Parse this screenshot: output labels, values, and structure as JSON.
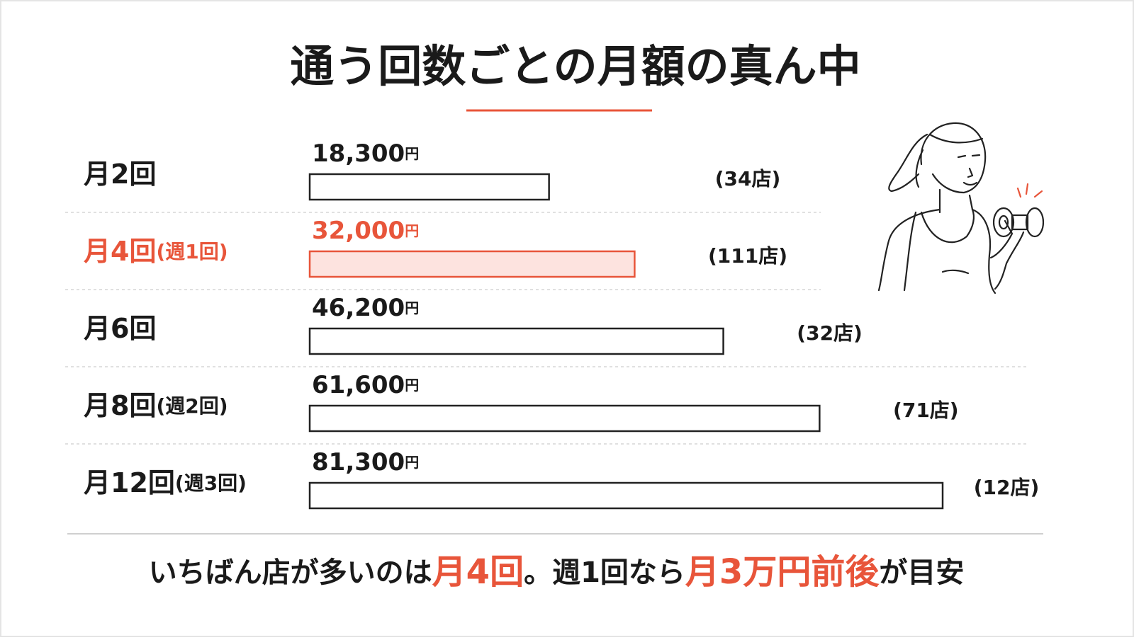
{
  "chart_data": {
    "type": "bar",
    "orientation": "horizontal",
    "title": "通う回数ごとの月額の真ん中",
    "categories": [
      "月2回",
      "月4回",
      "月6回",
      "月8回",
      "月12回"
    ],
    "category_notes": [
      null,
      "(週1回)",
      null,
      "(週2回)",
      "(週3回)"
    ],
    "values": [
      18300,
      32000,
      46200,
      61600,
      81300
    ],
    "value_labels": [
      "18,300",
      "32,000",
      "46,200",
      "61,600",
      "81,300"
    ],
    "unit": "円",
    "store_labels": [
      "(34店)",
      "(111店)",
      "(32店)",
      "(71店)",
      "(12店)"
    ],
    "xlim": [
      -20000,
      81300
    ],
    "color": "#222222",
    "highlight": 1,
    "highlight_color": "#e8553a",
    "highlight_fill": "#fde3df",
    "footer": [
      {
        "text": "いちばん店が多いのは",
        "highlight": false
      },
      {
        "text": "月4回",
        "highlight": true
      },
      {
        "text": "。週1回なら",
        "highlight": false
      },
      {
        "text": "月3万円前後",
        "highlight": true
      },
      {
        "text": "が目安",
        "highlight": false
      }
    ]
  }
}
